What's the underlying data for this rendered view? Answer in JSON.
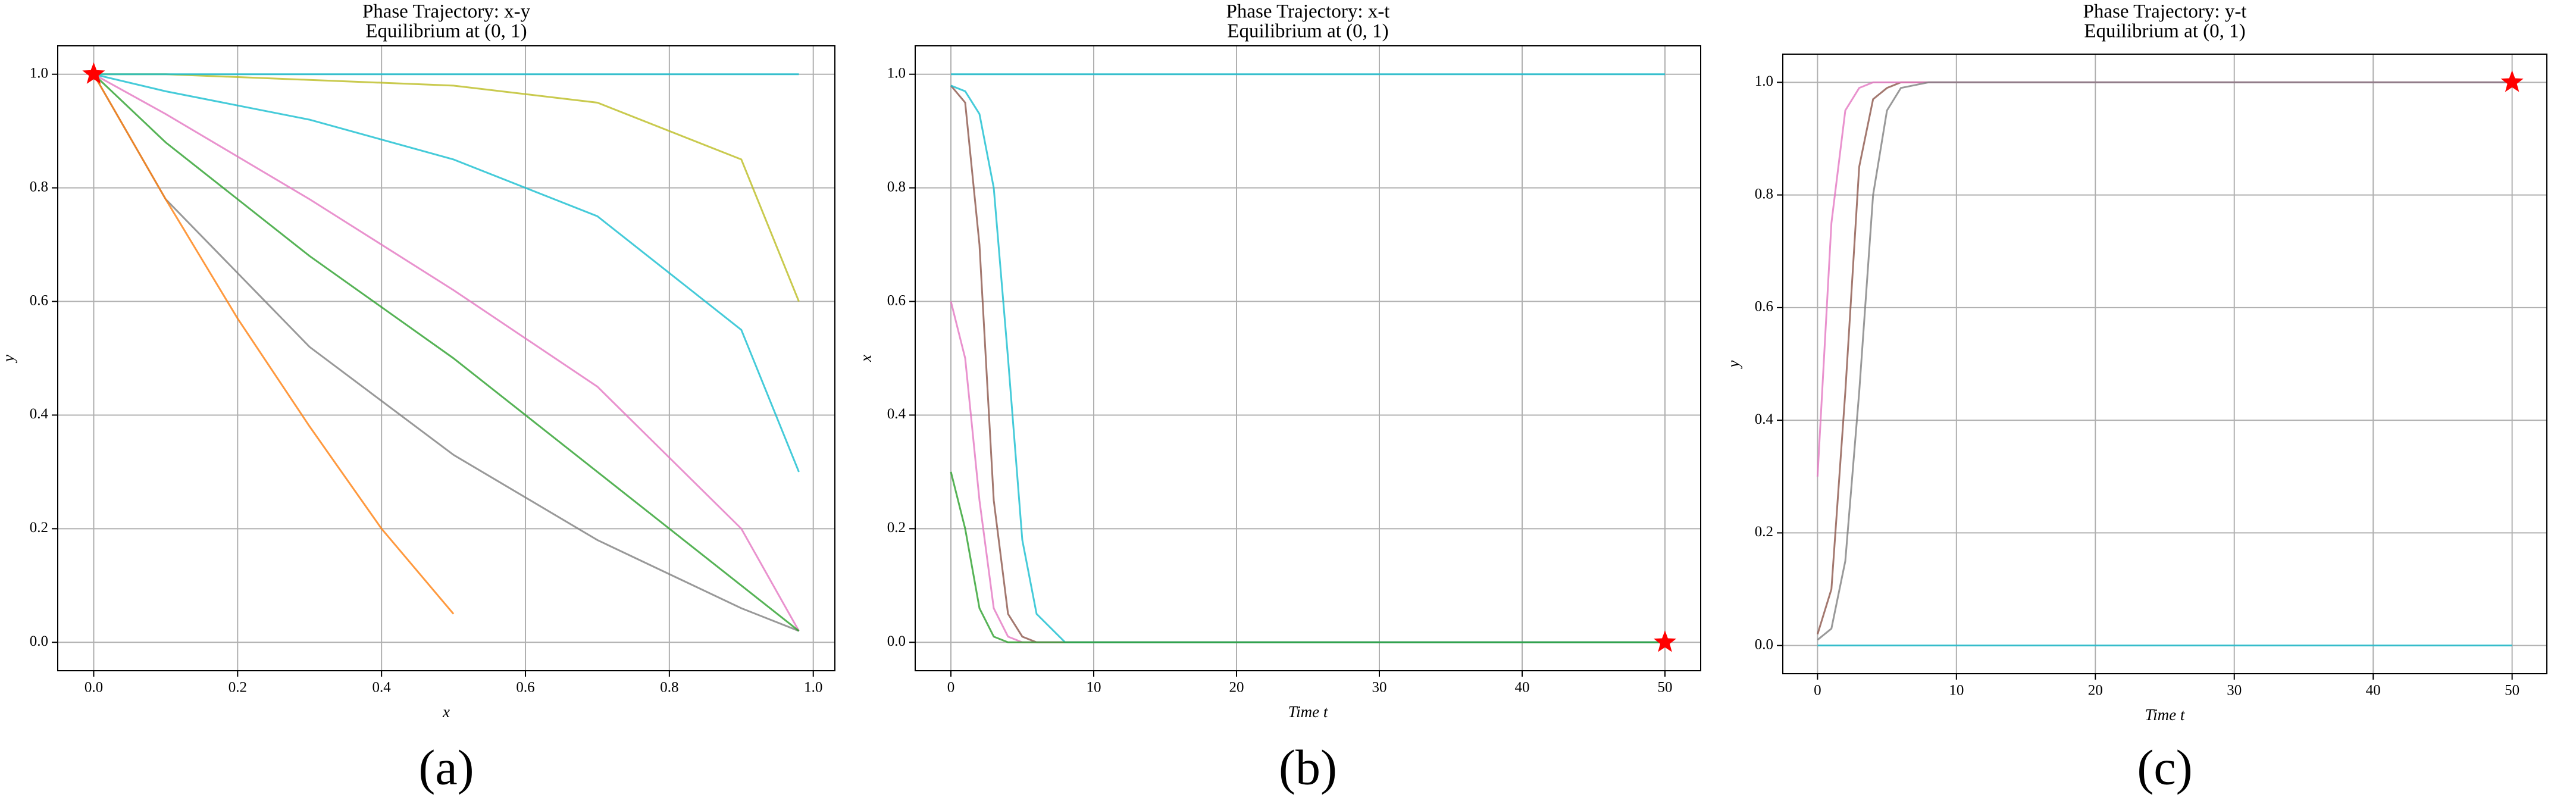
{
  "chart_data": [
    {
      "type": "line",
      "title": "Phase Trajectory: x-y",
      "subtitle": "Equilibrium at (0, 1)",
      "xlabel": "x",
      "ylabel": "y",
      "caption": "(a)",
      "xlim": [
        -0.05,
        1.03
      ],
      "ylim": [
        -0.05,
        1.05
      ],
      "xticks": [
        {
          "value": 0,
          "label": "0.0"
        },
        {
          "value": 0.2,
          "label": "0.2"
        },
        {
          "value": 0.4,
          "label": "0.4"
        },
        {
          "value": 0.6,
          "label": "0.6"
        },
        {
          "value": 0.8,
          "label": "0.8"
        },
        {
          "value": 1,
          "label": "1.0"
        }
      ],
      "yticks": [
        {
          "value": 0,
          "label": "0.0"
        },
        {
          "value": 0.2,
          "label": "0.2"
        },
        {
          "value": 0.4,
          "label": "0.4"
        },
        {
          "value": 0.6,
          "label": "0.6"
        },
        {
          "value": 0.8,
          "label": "0.8"
        },
        {
          "value": 1,
          "label": "1.0"
        }
      ],
      "grid": true,
      "series": [
        {
          "color": "#e377c2",
          "x": [
            0.98,
            0.9,
            0.7,
            0.5,
            0.3,
            0.1,
            0
          ],
          "values": [
            0.02,
            0.2,
            0.45,
            0.62,
            0.78,
            0.93,
            1
          ]
        },
        {
          "color": "#17becf",
          "x": [
            0.98,
            0.9,
            0.7,
            0.5,
            0.3,
            0.1,
            0
          ],
          "values": [
            0.3,
            0.55,
            0.75,
            0.85,
            0.92,
            0.97,
            1
          ]
        },
        {
          "color": "#7f7f7f",
          "x": [
            0.98,
            0.9,
            0.7,
            0.5,
            0.3,
            0.1,
            0
          ],
          "values": [
            0.02,
            0.06,
            0.18,
            0.33,
            0.52,
            0.78,
            1
          ]
        },
        {
          "color": "#bcbd22",
          "x": [
            0.98,
            0.9,
            0.7,
            0.5,
            0.3,
            0.1,
            0
          ],
          "values": [
            0.6,
            0.85,
            0.95,
            0.98,
            0.99,
            1,
            1
          ]
        },
        {
          "color": "#2ca02c",
          "x": [
            0.98,
            0.9,
            0.7,
            0.5,
            0.3,
            0.1,
            0
          ],
          "values": [
            0.02,
            0.1,
            0.3,
            0.5,
            0.68,
            0.88,
            1
          ]
        },
        {
          "color": "#ff7f0e",
          "x": [
            0.5,
            0.4,
            0.3,
            0.2,
            0.1,
            0
          ],
          "values": [
            0.05,
            0.2,
            0.38,
            0.57,
            0.78,
            1
          ]
        },
        {
          "color": "#17becf",
          "x": [
            0.98,
            0.5,
            0
          ],
          "values": [
            1,
            1,
            1
          ]
        }
      ],
      "marker": {
        "x": 0,
        "y": 1,
        "color": "#ff0000"
      }
    },
    {
      "type": "line",
      "title": "Phase Trajectory: x-t",
      "subtitle": "Equilibrium at (0, 1)",
      "xlabel": "Time t",
      "ylabel": "x",
      "caption": "(b)",
      "xlim": [
        -2.5,
        52.5
      ],
      "ylim": [
        -0.05,
        1.05
      ],
      "xticks": [
        0,
        10,
        20,
        30,
        40,
        50
      ],
      "yticks": [
        {
          "value": 0,
          "label": "0.0"
        },
        {
          "value": 0.2,
          "label": "0.2"
        },
        {
          "value": 0.4,
          "label": "0.4"
        },
        {
          "value": 0.6,
          "label": "0.6"
        },
        {
          "value": 0.8,
          "label": "0.8"
        },
        {
          "value": 1,
          "label": "1.0"
        }
      ],
      "grid": true,
      "series": [
        {
          "color": "#8c564b",
          "x": [
            0,
            1,
            2,
            3,
            4,
            5,
            6,
            8,
            10,
            50
          ],
          "values": [
            0.98,
            0.95,
            0.7,
            0.25,
            0.05,
            0.01,
            0,
            0,
            0,
            0
          ]
        },
        {
          "color": "#e377c2",
          "x": [
            0,
            1,
            2,
            3,
            4,
            5,
            6,
            8,
            10,
            50
          ],
          "values": [
            0.6,
            0.5,
            0.25,
            0.06,
            0.01,
            0,
            0,
            0,
            0,
            0
          ]
        },
        {
          "color": "#17becf",
          "x": [
            0,
            1,
            2,
            3,
            4,
            5,
            6,
            8,
            10,
            50
          ],
          "values": [
            0.98,
            0.97,
            0.93,
            0.8,
            0.5,
            0.18,
            0.05,
            0,
            0,
            0
          ]
        },
        {
          "color": "#2ca02c",
          "x": [
            0,
            1,
            2,
            3,
            4,
            5,
            6,
            8,
            10,
            50
          ],
          "values": [
            0.3,
            0.2,
            0.06,
            0.01,
            0,
            0,
            0,
            0,
            0,
            0
          ]
        },
        {
          "color": "#17becf",
          "x": [
            0,
            50
          ],
          "values": [
            1,
            1
          ]
        }
      ],
      "marker": {
        "x": 50,
        "y": 0,
        "color": "#ff0000"
      }
    },
    {
      "type": "line",
      "title": "Phase Trajectory: y-t",
      "subtitle": "Equilibrium at (0, 1)",
      "xlabel": "Time t",
      "ylabel": "y",
      "caption": "(c)",
      "xlim": [
        -2.5,
        52.5
      ],
      "ylim": [
        -0.05,
        1.05
      ],
      "xticks": [
        0,
        10,
        20,
        30,
        40,
        50
      ],
      "yticks": [
        {
          "value": 0,
          "label": "0.0"
        },
        {
          "value": 0.2,
          "label": "0.2"
        },
        {
          "value": 0.4,
          "label": "0.4"
        },
        {
          "value": 0.6,
          "label": "0.6"
        },
        {
          "value": 0.8,
          "label": "0.8"
        },
        {
          "value": 1,
          "label": "1.0"
        }
      ],
      "grid": true,
      "series": [
        {
          "color": "#8c564b",
          "x": [
            0,
            1,
            2,
            3,
            4,
            5,
            6,
            8,
            10,
            50
          ],
          "values": [
            0.02,
            0.1,
            0.45,
            0.85,
            0.97,
            0.99,
            1,
            1,
            1,
            1
          ]
        },
        {
          "color": "#e377c2",
          "x": [
            0,
            1,
            2,
            3,
            4,
            5,
            6,
            8,
            10,
            50
          ],
          "values": [
            0.3,
            0.75,
            0.95,
            0.99,
            1,
            1,
            1,
            1,
            1,
            1
          ]
        },
        {
          "color": "#7f7f7f",
          "x": [
            0,
            1,
            2,
            3,
            4,
            5,
            6,
            8,
            10,
            50
          ],
          "values": [
            0.01,
            0.03,
            0.15,
            0.45,
            0.8,
            0.95,
            0.99,
            1,
            1,
            1
          ]
        },
        {
          "color": "#17becf",
          "x": [
            0,
            50
          ],
          "values": [
            0,
            0
          ]
        }
      ],
      "marker": {
        "x": 50,
        "y": 1,
        "color": "#ff0000"
      }
    }
  ]
}
